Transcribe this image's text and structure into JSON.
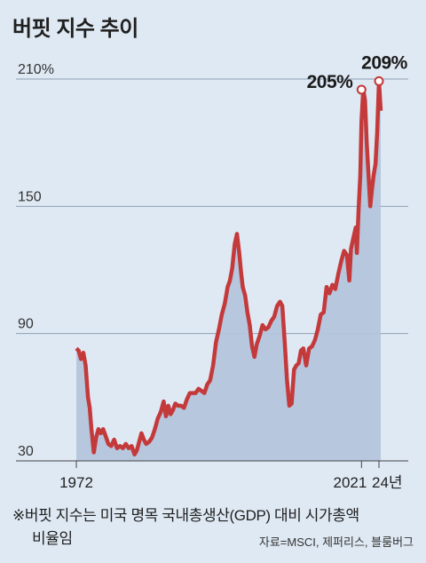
{
  "title": "버핏 지수 추이",
  "footnote": {
    "line1": "※버핏 지수는 미국 명목 국내총생산(GDP) 대비 시가총액",
    "line2": "비율임"
  },
  "source": "자료=MSCI, 제퍼리스, 블룸버그",
  "colors": {
    "background": "#dfe9f3",
    "line": "#c4393a",
    "area": "#b3c5dc",
    "grid": "#8ea0b4"
  },
  "chart_data": {
    "type": "area",
    "title": "버핏 지수 추이",
    "xlabel": "",
    "ylabel": "",
    "ylim": [
      30,
      210
    ],
    "xlim": [
      1972,
      2024.5
    ],
    "grid": true,
    "y_ticks": [
      {
        "value": 210,
        "label": "210%"
      },
      {
        "value": 150,
        "label": "150"
      },
      {
        "value": 90,
        "label": "90"
      },
      {
        "value": 30,
        "label": "30"
      }
    ],
    "x_ticks": [
      {
        "value": 1972,
        "label": "1972"
      },
      {
        "value": 2021,
        "label": "2021"
      },
      {
        "value": 2024,
        "label": "24년"
      }
    ],
    "annotations": [
      {
        "x": 2021,
        "y": 205,
        "label": "205%"
      },
      {
        "x": 2024,
        "y": 209,
        "label": "209%"
      }
    ],
    "series": [
      {
        "x": [
          1972.0,
          1972.4,
          1972.8,
          1973.2,
          1973.6,
          1974.0,
          1974.3,
          1974.6,
          1975.0,
          1975.4,
          1975.8,
          1976.2,
          1976.6,
          1977.0,
          1977.5,
          1978.0,
          1978.5,
          1979.0,
          1979.5,
          1980.0,
          1980.5,
          1981.0,
          1981.5,
          1982.0,
          1982.4,
          1982.8,
          1983.2,
          1983.6,
          1984.0,
          1984.5,
          1985.0,
          1985.5,
          1986.0,
          1986.5,
          1987.0,
          1987.4,
          1987.8,
          1988.2,
          1988.6,
          1989.0,
          1989.5,
          1990.0,
          1990.5,
          1991.0,
          1991.5,
          1992.0,
          1992.5,
          1993.0,
          1993.5,
          1994.0,
          1994.5,
          1995.0,
          1995.5,
          1996.0,
          1996.5,
          1997.0,
          1997.5,
          1998.0,
          1998.4,
          1998.8,
          1999.2,
          1999.6,
          2000.0,
          2000.3,
          2000.6,
          2001.0,
          2001.4,
          2001.8,
          2002.2,
          2002.6,
          2003.0,
          2003.5,
          2004.0,
          2004.5,
          2005.0,
          2005.5,
          2006.0,
          2006.5,
          2007.0,
          2007.4,
          2007.8,
          2008.2,
          2008.6,
          2009.0,
          2009.4,
          2009.8,
          2010.2,
          2010.6,
          2011.0,
          2011.5,
          2012.0,
          2012.5,
          2013.0,
          2013.5,
          2014.0,
          2014.5,
          2015.0,
          2015.5,
          2016.0,
          2016.5,
          2017.0,
          2017.5,
          2018.0,
          2018.5,
          2018.9,
          2019.2,
          2019.6,
          2020.0,
          2020.2,
          2020.5,
          2020.8,
          2021.0,
          2021.3,
          2021.6,
          2021.9,
          2022.2,
          2022.5,
          2022.8,
          2023.1,
          2023.4,
          2023.7,
          2024.0,
          2024.3
        ],
        "y": [
          83,
          82,
          78,
          81,
          75,
          60,
          55,
          45,
          34,
          41,
          45,
          43,
          45,
          42,
          38,
          37,
          40,
          36,
          37,
          36,
          38,
          36,
          37,
          33,
          35,
          39,
          43,
          40,
          38,
          39,
          41,
          45,
          50,
          53,
          58,
          51,
          56,
          52,
          54,
          57,
          56,
          56,
          55,
          59,
          62,
          62,
          62,
          64,
          63,
          62,
          66,
          68,
          75,
          86,
          92,
          99,
          104,
          112,
          115,
          121,
          132,
          137,
          128,
          119,
          112,
          108,
          100,
          94,
          84,
          79,
          85,
          89,
          94,
          92,
          93,
          96,
          98,
          103,
          105,
          103,
          86,
          68,
          56,
          57,
          73,
          75,
          76,
          82,
          83,
          75,
          83,
          84,
          87,
          92,
          99,
          100,
          112,
          109,
          113,
          111,
          118,
          124,
          129,
          127,
          115,
          130,
          135,
          140,
          128,
          148,
          165,
          190,
          205,
          200,
          180,
          165,
          150,
          158,
          165,
          170,
          185,
          209,
          195
        ]
      }
    ]
  }
}
